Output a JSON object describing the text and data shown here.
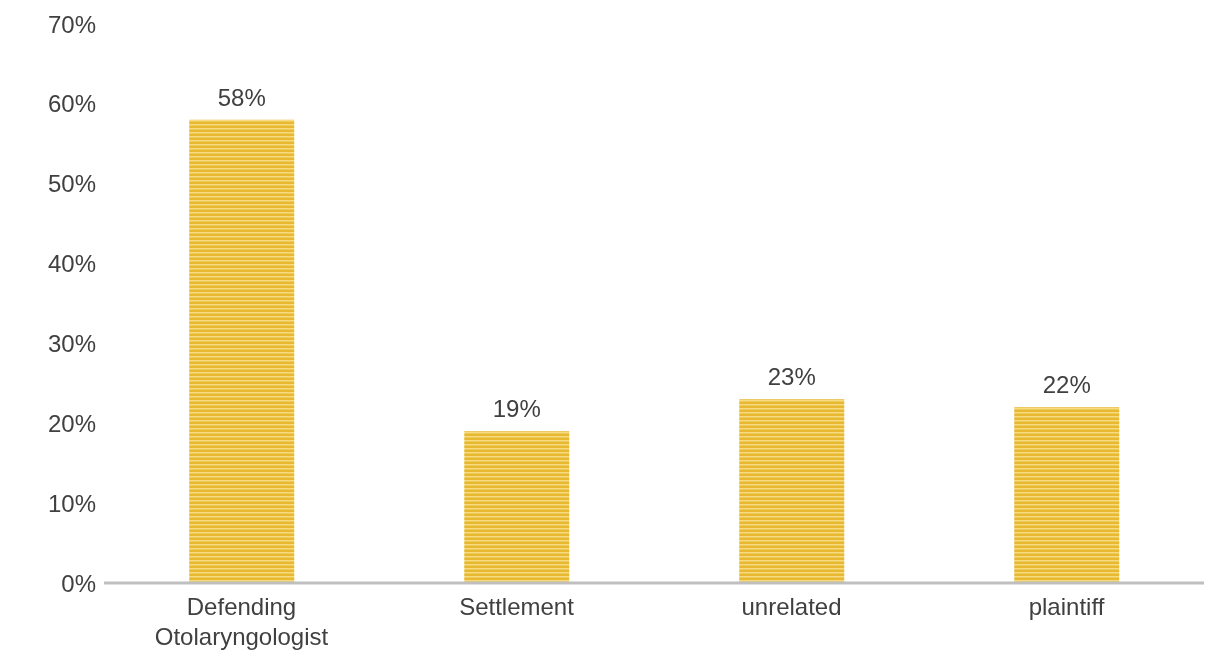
{
  "chart_data": {
    "type": "bar",
    "categories": [
      "Defending Otolaryngologist",
      "Settlement",
      "unrelated",
      "plaintiff"
    ],
    "values": [
      58,
      19,
      23,
      22
    ],
    "color": "#e8b830",
    "value_labels": [
      "58%",
      "19%",
      "23%",
      "22%"
    ],
    "ylim": [
      0,
      70
    ],
    "yticks": [
      {
        "value": 0,
        "label": "0%"
      },
      {
        "value": 10,
        "label": "10%"
      },
      {
        "value": 20,
        "label": "20%"
      },
      {
        "value": 30,
        "label": "30%"
      },
      {
        "value": 40,
        "label": "40%"
      },
      {
        "value": 50,
        "label": "50%"
      },
      {
        "value": 60,
        "label": "60%"
      },
      {
        "value": 70,
        "label": "70%"
      }
    ],
    "grid": false
  }
}
